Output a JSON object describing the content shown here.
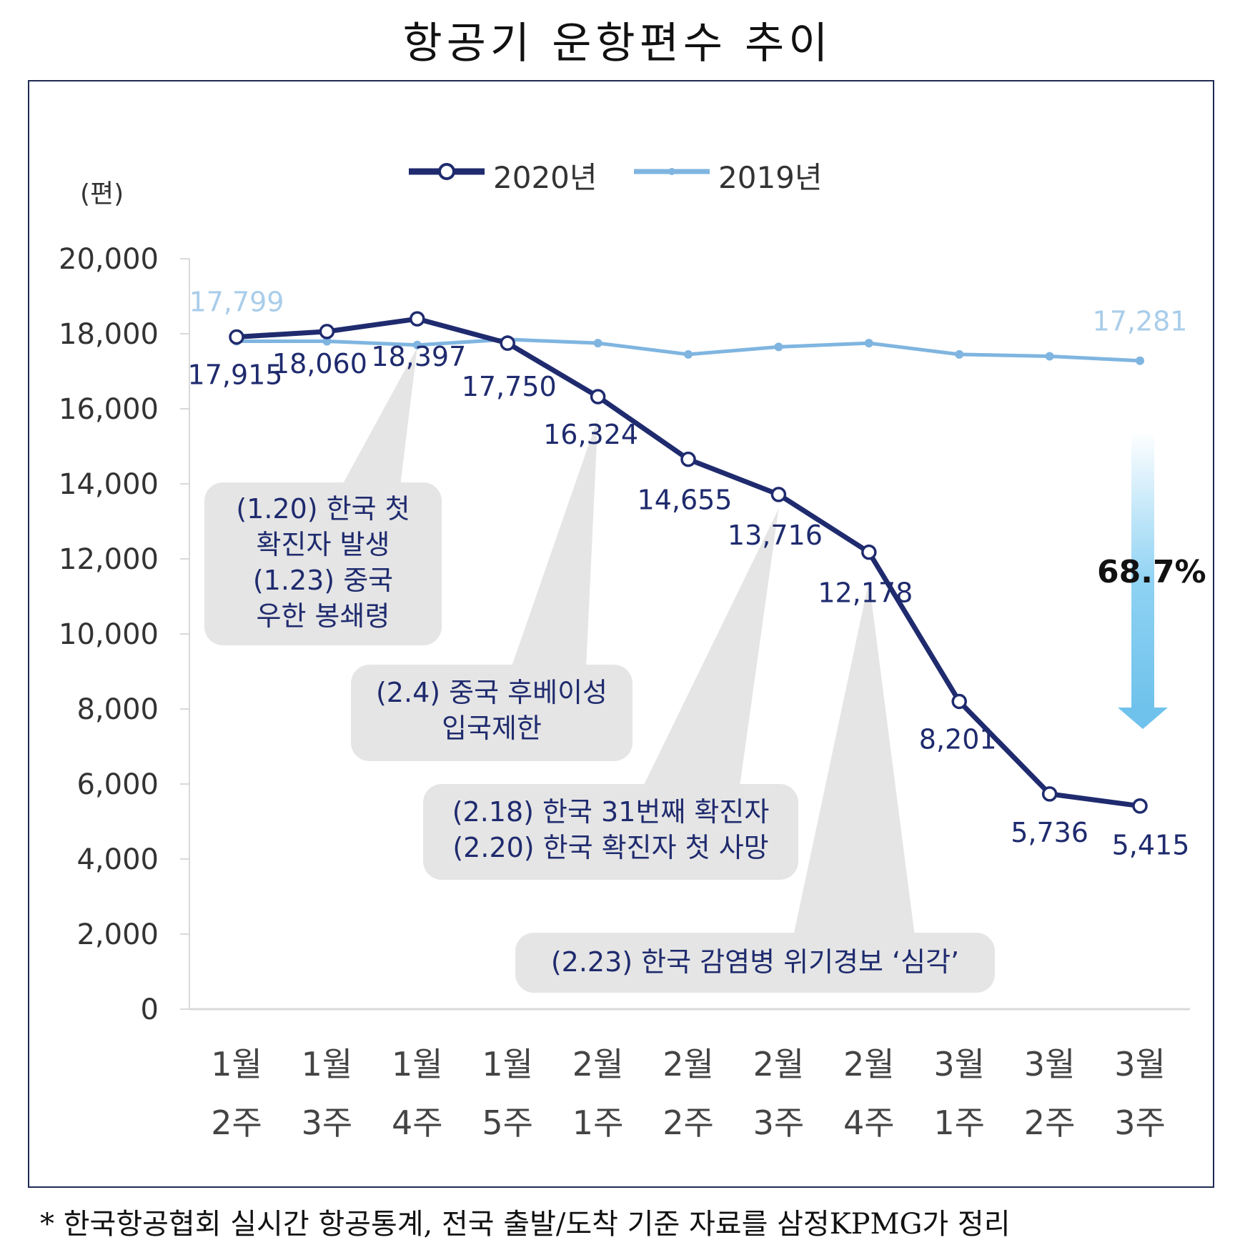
{
  "title": "항공기 운항편수 추이",
  "footnote": "* 한국항공협회 실시간 항공통계, 전국 출발/도착 기준 자료를 삼정KPMG가 정리",
  "colors": {
    "series_2020": "#1f2b6e",
    "series_2019": "#7fb5e0",
    "callout_bg": "#e5e5e5",
    "arrow": "#7cc8ef"
  },
  "chart_data": {
    "type": "line",
    "title": "항공기 운항편수 추이",
    "ylabel": "(편)",
    "xlabel": "",
    "ylim": [
      0,
      20000
    ],
    "yticks": [
      "0",
      "2,000",
      "4,000",
      "6,000",
      "8,000",
      "10,000",
      "12,000",
      "14,000",
      "16,000",
      "18,000",
      "20,000"
    ],
    "categories": [
      [
        "1월",
        "2주"
      ],
      [
        "1월",
        "3주"
      ],
      [
        "1월",
        "4주"
      ],
      [
        "1월",
        "5주"
      ],
      [
        "2월",
        "1주"
      ],
      [
        "2월",
        "2주"
      ],
      [
        "2월",
        "3주"
      ],
      [
        "2월",
        "4주"
      ],
      [
        "3월",
        "1주"
      ],
      [
        "3월",
        "2주"
      ],
      [
        "3월",
        "3주"
      ]
    ],
    "series": [
      {
        "name": "2020년",
        "values": [
          17915,
          18060,
          18397,
          17750,
          16324,
          14655,
          13716,
          12178,
          8201,
          5736,
          5415
        ],
        "labels": [
          "17,915",
          "18,060",
          "18,397",
          "17,750",
          "16,324",
          "14,655",
          "13,716",
          "12,178",
          "8,201",
          "5,736",
          "5,415"
        ]
      },
      {
        "name": "2019년",
        "values": [
          17799,
          17800,
          17700,
          17850,
          17750,
          17450,
          17650,
          17750,
          17450,
          17400,
          17281
        ],
        "labels": [
          "17,799",
          "17,281"
        ]
      }
    ],
    "annotations": [
      {
        "lines": [
          "(1.20) 한국 첫",
          "확진자 발생",
          "(1.23) 중국",
          "우한 봉쇄령"
        ]
      },
      {
        "lines": [
          "(2.4) 중국 후베이성",
          "입국제한"
        ]
      },
      {
        "lines": [
          "(2.18) 한국 31번째 확진자",
          "(2.20) 한국 확진자 첫 사망"
        ]
      },
      {
        "lines": [
          "(2.23) 한국 감염병 위기경보 ‘심각’"
        ]
      }
    ],
    "drop_label": "68.7%",
    "legend_position": "top-center"
  }
}
